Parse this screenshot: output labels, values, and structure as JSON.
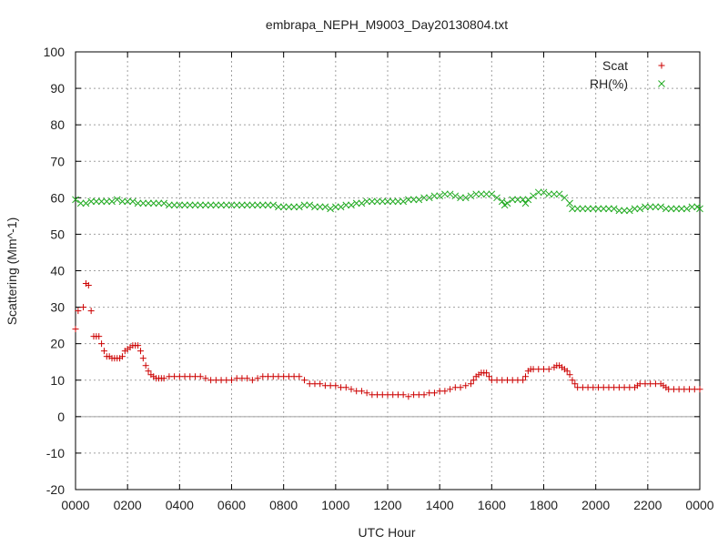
{
  "chart_data": {
    "type": "scatter",
    "title": "embrapa_NEPH_M9003_Day20130804.txt",
    "xlabel": "UTC Hour",
    "ylabel": "Scattering (Mm^-1)",
    "xlim": [
      0,
      24
    ],
    "ylim": [
      -20,
      100
    ],
    "x_tick_values": [
      0,
      2,
      4,
      6,
      8,
      10,
      12,
      14,
      16,
      18,
      20,
      22,
      24
    ],
    "x_tick_labels": [
      "0000",
      "0200",
      "0400",
      "0600",
      "0800",
      "1000",
      "1200",
      "1400",
      "1600",
      "1800",
      "2000",
      "2200",
      "0000"
    ],
    "y_ticks": [
      -20,
      -10,
      0,
      10,
      20,
      30,
      40,
      50,
      60,
      70,
      80,
      90,
      100
    ],
    "grid": true,
    "zero_line": true,
    "legend_position": "top-right",
    "series": [
      {
        "name": "Scat",
        "marker": "plus",
        "color": "#cc0000",
        "points": [
          [
            0.0,
            24
          ],
          [
            0.1,
            29
          ],
          [
            0.3,
            30
          ],
          [
            0.4,
            36.5
          ],
          [
            0.5,
            36
          ],
          [
            0.6,
            29
          ],
          [
            0.7,
            22
          ],
          [
            0.8,
            22
          ],
          [
            0.9,
            22
          ],
          [
            1.0,
            20
          ],
          [
            1.1,
            18
          ],
          [
            1.2,
            16.5
          ],
          [
            1.3,
            16.5
          ],
          [
            1.4,
            16
          ],
          [
            1.5,
            16
          ],
          [
            1.6,
            16
          ],
          [
            1.7,
            16
          ],
          [
            1.8,
            16.5
          ],
          [
            1.9,
            18
          ],
          [
            2.0,
            18.5
          ],
          [
            2.1,
            19
          ],
          [
            2.2,
            19.5
          ],
          [
            2.3,
            19.5
          ],
          [
            2.4,
            19.5
          ],
          [
            2.5,
            18
          ],
          [
            2.6,
            16
          ],
          [
            2.7,
            14
          ],
          [
            2.8,
            12.5
          ],
          [
            2.9,
            11.5
          ],
          [
            3.0,
            11
          ],
          [
            3.1,
            10.5
          ],
          [
            3.2,
            10.5
          ],
          [
            3.3,
            10.5
          ],
          [
            3.4,
            10.5
          ],
          [
            3.6,
            11
          ],
          [
            3.8,
            11
          ],
          [
            4.0,
            11
          ],
          [
            4.2,
            11
          ],
          [
            4.4,
            11
          ],
          [
            4.6,
            11
          ],
          [
            4.8,
            11
          ],
          [
            5.0,
            10.5
          ],
          [
            5.2,
            10
          ],
          [
            5.4,
            10
          ],
          [
            5.6,
            10
          ],
          [
            5.8,
            10
          ],
          [
            6.0,
            10
          ],
          [
            6.2,
            10.5
          ],
          [
            6.4,
            10.5
          ],
          [
            6.6,
            10.5
          ],
          [
            6.8,
            10
          ],
          [
            7.0,
            10.5
          ],
          [
            7.2,
            11
          ],
          [
            7.4,
            11
          ],
          [
            7.6,
            11
          ],
          [
            7.8,
            11
          ],
          [
            8.0,
            11
          ],
          [
            8.2,
            11
          ],
          [
            8.4,
            11
          ],
          [
            8.6,
            11
          ],
          [
            8.8,
            10
          ],
          [
            9.0,
            9
          ],
          [
            9.2,
            9
          ],
          [
            9.4,
            9
          ],
          [
            9.6,
            8.5
          ],
          [
            9.8,
            8.5
          ],
          [
            10.0,
            8.5
          ],
          [
            10.2,
            8
          ],
          [
            10.4,
            8
          ],
          [
            10.6,
            7.5
          ],
          [
            10.8,
            7
          ],
          [
            11.0,
            7
          ],
          [
            11.2,
            6.5
          ],
          [
            11.4,
            6
          ],
          [
            11.6,
            6
          ],
          [
            11.8,
            6
          ],
          [
            12.0,
            6
          ],
          [
            12.2,
            6
          ],
          [
            12.4,
            6
          ],
          [
            12.6,
            6
          ],
          [
            12.8,
            5.5
          ],
          [
            13.0,
            6
          ],
          [
            13.2,
            6
          ],
          [
            13.4,
            6
          ],
          [
            13.6,
            6.5
          ],
          [
            13.8,
            6.5
          ],
          [
            14.0,
            7
          ],
          [
            14.2,
            7
          ],
          [
            14.4,
            7.5
          ],
          [
            14.6,
            8
          ],
          [
            14.8,
            8
          ],
          [
            15.0,
            8.5
          ],
          [
            15.2,
            9
          ],
          [
            15.3,
            10
          ],
          [
            15.4,
            11
          ],
          [
            15.5,
            11.5
          ],
          [
            15.6,
            12
          ],
          [
            15.7,
            12
          ],
          [
            15.8,
            12
          ],
          [
            15.9,
            11
          ],
          [
            16.0,
            10
          ],
          [
            16.2,
            10
          ],
          [
            16.4,
            10
          ],
          [
            16.6,
            10
          ],
          [
            16.8,
            10
          ],
          [
            17.0,
            10
          ],
          [
            17.2,
            10
          ],
          [
            17.3,
            11
          ],
          [
            17.4,
            12.5
          ],
          [
            17.5,
            13
          ],
          [
            17.6,
            13
          ],
          [
            17.8,
            13
          ],
          [
            18.0,
            13
          ],
          [
            18.2,
            13
          ],
          [
            18.4,
            13.5
          ],
          [
            18.5,
            14
          ],
          [
            18.6,
            14
          ],
          [
            18.7,
            13.5
          ],
          [
            18.8,
            13
          ],
          [
            18.9,
            12.5
          ],
          [
            19.0,
            11.5
          ],
          [
            19.1,
            10
          ],
          [
            19.2,
            9
          ],
          [
            19.3,
            8
          ],
          [
            19.5,
            8
          ],
          [
            19.7,
            8
          ],
          [
            19.9,
            8
          ],
          [
            20.1,
            8
          ],
          [
            20.3,
            8
          ],
          [
            20.5,
            8
          ],
          [
            20.7,
            8
          ],
          [
            20.9,
            8
          ],
          [
            21.1,
            8
          ],
          [
            21.3,
            8
          ],
          [
            21.5,
            8
          ],
          [
            21.6,
            8.5
          ],
          [
            21.7,
            9
          ],
          [
            21.9,
            9
          ],
          [
            22.1,
            9
          ],
          [
            22.3,
            9
          ],
          [
            22.5,
            9
          ],
          [
            22.6,
            8.5
          ],
          [
            22.7,
            8
          ],
          [
            22.8,
            7.5
          ],
          [
            23.0,
            7.5
          ],
          [
            23.2,
            7.5
          ],
          [
            23.4,
            7.5
          ],
          [
            23.6,
            7.5
          ],
          [
            23.8,
            7.5
          ],
          [
            24.0,
            7.5
          ]
        ]
      },
      {
        "name": "RH(%)",
        "marker": "x",
        "color": "#22aa22",
        "points": [
          [
            0.0,
            59.5
          ],
          [
            0.2,
            58.5
          ],
          [
            0.4,
            58.5
          ],
          [
            0.6,
            59
          ],
          [
            0.8,
            59
          ],
          [
            1.0,
            59
          ],
          [
            1.2,
            59
          ],
          [
            1.4,
            59
          ],
          [
            1.6,
            59.5
          ],
          [
            1.8,
            59
          ],
          [
            2.0,
            59
          ],
          [
            2.2,
            59
          ],
          [
            2.4,
            58.5
          ],
          [
            2.6,
            58.5
          ],
          [
            2.8,
            58.5
          ],
          [
            3.0,
            58.5
          ],
          [
            3.2,
            58.5
          ],
          [
            3.4,
            58.5
          ],
          [
            3.6,
            58
          ],
          [
            3.8,
            58
          ],
          [
            4.0,
            58
          ],
          [
            4.2,
            58
          ],
          [
            4.4,
            58
          ],
          [
            4.6,
            58
          ],
          [
            4.8,
            58
          ],
          [
            5.0,
            58
          ],
          [
            5.2,
            58
          ],
          [
            5.4,
            58
          ],
          [
            5.6,
            58
          ],
          [
            5.8,
            58
          ],
          [
            6.0,
            58
          ],
          [
            6.2,
            58
          ],
          [
            6.4,
            58
          ],
          [
            6.6,
            58
          ],
          [
            6.8,
            58
          ],
          [
            7.0,
            58
          ],
          [
            7.2,
            58
          ],
          [
            7.4,
            58
          ],
          [
            7.6,
            58
          ],
          [
            7.8,
            57.5
          ],
          [
            8.0,
            57.5
          ],
          [
            8.2,
            57.5
          ],
          [
            8.4,
            57.5
          ],
          [
            8.6,
            57.5
          ],
          [
            8.8,
            58
          ],
          [
            9.0,
            58
          ],
          [
            9.2,
            57.5
          ],
          [
            9.4,
            57.5
          ],
          [
            9.6,
            57.5
          ],
          [
            9.8,
            57
          ],
          [
            10.0,
            57.5
          ],
          [
            10.2,
            57.5
          ],
          [
            10.4,
            58
          ],
          [
            10.6,
            58
          ],
          [
            10.8,
            58.5
          ],
          [
            11.0,
            58.5
          ],
          [
            11.2,
            59
          ],
          [
            11.4,
            59
          ],
          [
            11.6,
            59
          ],
          [
            11.8,
            59
          ],
          [
            12.0,
            59
          ],
          [
            12.2,
            59
          ],
          [
            12.4,
            59
          ],
          [
            12.6,
            59
          ],
          [
            12.8,
            59.5
          ],
          [
            13.0,
            59.5
          ],
          [
            13.2,
            59.5
          ],
          [
            13.4,
            60
          ],
          [
            13.6,
            60
          ],
          [
            13.8,
            60.5
          ],
          [
            14.0,
            60.5
          ],
          [
            14.2,
            61
          ],
          [
            14.4,
            61
          ],
          [
            14.6,
            60.5
          ],
          [
            14.8,
            60
          ],
          [
            15.0,
            60
          ],
          [
            15.2,
            60.5
          ],
          [
            15.4,
            61
          ],
          [
            15.6,
            61
          ],
          [
            15.8,
            61
          ],
          [
            16.0,
            61
          ],
          [
            16.2,
            60
          ],
          [
            16.4,
            59
          ],
          [
            16.5,
            58
          ],
          [
            16.6,
            58.5
          ],
          [
            16.8,
            59.5
          ],
          [
            17.0,
            59.5
          ],
          [
            17.2,
            59.5
          ],
          [
            17.3,
            58.5
          ],
          [
            17.4,
            59.5
          ],
          [
            17.6,
            60.5
          ],
          [
            17.8,
            61.5
          ],
          [
            18.0,
            61.5
          ],
          [
            18.2,
            61
          ],
          [
            18.4,
            61
          ],
          [
            18.6,
            61
          ],
          [
            18.8,
            60
          ],
          [
            19.0,
            58.5
          ],
          [
            19.1,
            57
          ],
          [
            19.3,
            57
          ],
          [
            19.5,
            57
          ],
          [
            19.7,
            57
          ],
          [
            19.9,
            57
          ],
          [
            20.1,
            57
          ],
          [
            20.3,
            57
          ],
          [
            20.5,
            57
          ],
          [
            20.7,
            57
          ],
          [
            20.9,
            56.5
          ],
          [
            21.1,
            56.5
          ],
          [
            21.3,
            56.5
          ],
          [
            21.5,
            57
          ],
          [
            21.7,
            57
          ],
          [
            21.9,
            57.5
          ],
          [
            22.1,
            57.5
          ],
          [
            22.3,
            57.5
          ],
          [
            22.5,
            57.5
          ],
          [
            22.7,
            57
          ],
          [
            22.9,
            57
          ],
          [
            23.1,
            57
          ],
          [
            23.3,
            57
          ],
          [
            23.5,
            57
          ],
          [
            23.7,
            57.5
          ],
          [
            23.9,
            57.5
          ],
          [
            24.0,
            57
          ]
        ]
      }
    ]
  }
}
